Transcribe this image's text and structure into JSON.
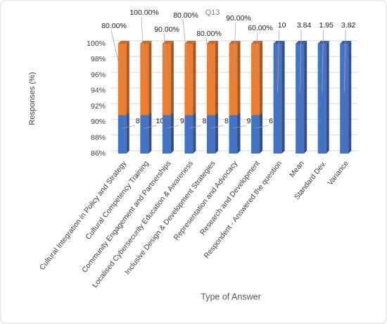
{
  "chart_data": {
    "type": "bar",
    "stacking": "percent",
    "title": "Q13",
    "y_label": "Responses (%)",
    "x_label": "Type of Answer",
    "categories": [
      "Cultural Integration in Policy and Strategy",
      "Cultural Competency Training",
      "Community Engagement and Partnerships",
      "Localised Cybersecurity Education & Awareness",
      "Inclusive Design & Development Strategies",
      "Representation and Advocacy",
      "Research and Development",
      "Respondent - Answered the question",
      "Mean",
      "Standard Dev.",
      "Variance"
    ],
    "series": [
      {
        "color": "#4472c4",
        "values": [
          8,
          10,
          9,
          8,
          8,
          9,
          6,
          10,
          3.84,
          1.95,
          3.82
        ]
      },
      {
        "color": "#ed7d31",
        "values": [
          0.8,
          1,
          0.9,
          0.8,
          0.8,
          0.9,
          0.6,
          null,
          null,
          null,
          null
        ],
        "value_labels": [
          "80.00%",
          "100.00%",
          "90.00%",
          "80.00%",
          "80.00%",
          "90.00%",
          "60.00%",
          null,
          null,
          null,
          null
        ]
      }
    ],
    "ylim": [
      86,
      100
    ],
    "yticks": [
      {
        "value": 86,
        "label": "86%"
      },
      {
        "value": 88,
        "label": "88%"
      },
      {
        "value": 90,
        "label": "90%"
      },
      {
        "value": 92,
        "label": "92%"
      },
      {
        "value": 94,
        "label": "94%"
      },
      {
        "value": 96,
        "label": "96%"
      },
      {
        "value": 98,
        "label": "98%"
      },
      {
        "value": 100,
        "label": "100%"
      }
    ],
    "grid": true
  }
}
